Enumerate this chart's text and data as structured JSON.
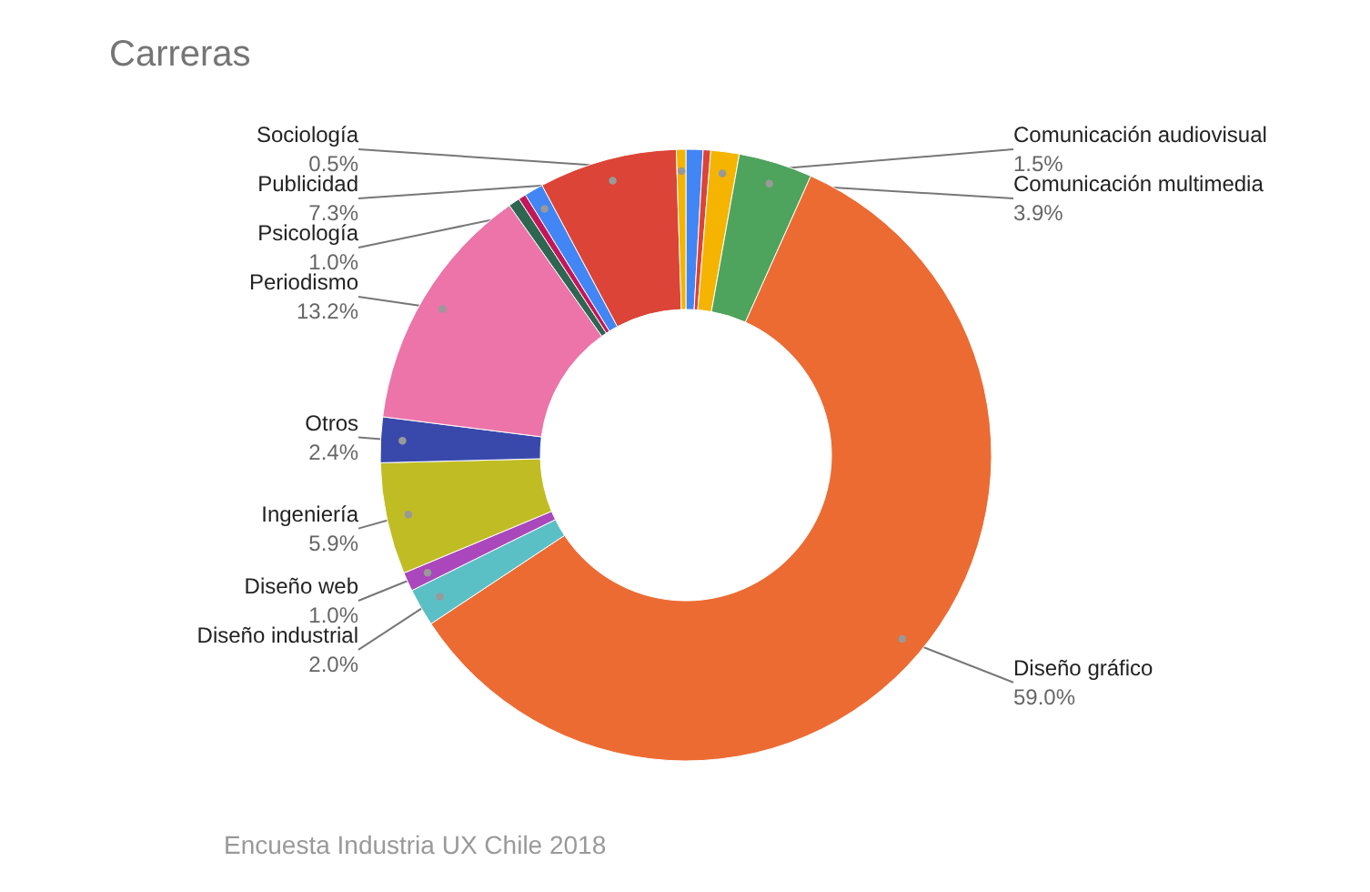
{
  "chart_data": {
    "type": "donut",
    "title": "Carreras",
    "categories": [
      null,
      null,
      "Comunicación audiovisual",
      "Comunicación multimedia",
      "Diseño gráfico",
      "Diseño industrial",
      "Diseño web",
      "Ingeniería",
      "Otros",
      "Periodismo",
      null,
      null,
      "Psicología",
      "Publicidad",
      "Sociología"
    ],
    "values": [
      0.9,
      0.4,
      1.5,
      3.9,
      59.0,
      2.0,
      1.0,
      5.9,
      2.4,
      13.2,
      0.6,
      0.4,
      1.0,
      7.3,
      0.5
    ],
    "value_labels": [
      null,
      null,
      "1.5%",
      "3.9%",
      "59.0%",
      "2.0%",
      "1.0%",
      "5.9%",
      "2.4%",
      "13.2%",
      null,
      null,
      "1.0%",
      "7.3%",
      "0.5%"
    ],
    "colors": [
      "#4285f4",
      "#db4437",
      "#f4b400",
      "#4ea45c",
      "#ec6b33",
      "#5bbfc6",
      "#ab47bc",
      "#c0bc24",
      "#3949ab",
      "#ec74a8",
      "#2e6652",
      "#c2185b",
      "#4285f4",
      "#db4437",
      "#f4b400"
    ],
    "annotations": [
      "Encuesta Industria UX Chile 2018"
    ]
  }
}
